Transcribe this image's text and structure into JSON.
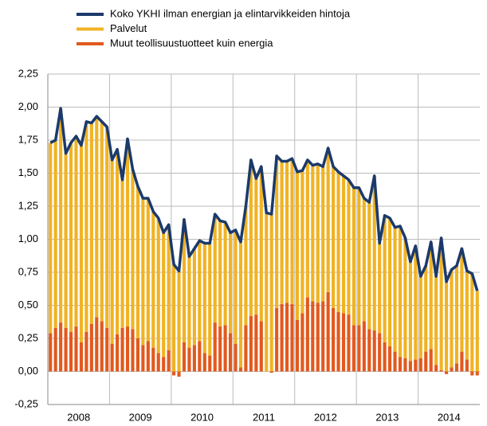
{
  "chart_data": {
    "type": "bar",
    "stacked": true,
    "categories": [
      null,
      null,
      null,
      null,
      null,
      null,
      "2008",
      null,
      null,
      null,
      null,
      null,
      null,
      null,
      null,
      null,
      null,
      null,
      "2009",
      null,
      null,
      null,
      null,
      null,
      null,
      null,
      null,
      null,
      null,
      null,
      "2010",
      null,
      null,
      null,
      null,
      null,
      null,
      null,
      null,
      null,
      null,
      null,
      "2011",
      null,
      null,
      null,
      null,
      null,
      null,
      null,
      null,
      null,
      null,
      null,
      "2012",
      null,
      null,
      null,
      null,
      null,
      null,
      null,
      null,
      null,
      null,
      null,
      "2013",
      null,
      null,
      null,
      null,
      null,
      null,
      null,
      null,
      null,
      null,
      null,
      "2014",
      null,
      null,
      null,
      null,
      null
    ],
    "series": [
      {
        "name": "Koko YKHI ilman energian ja elintarvikkeiden hintoja",
        "type": "line",
        "color": "#1b3a6b",
        "values": [
          1.73,
          1.75,
          1.99,
          1.65,
          1.73,
          1.78,
          1.71,
          1.89,
          1.88,
          1.93,
          1.89,
          1.85,
          1.6,
          1.68,
          1.45,
          1.76,
          1.53,
          1.4,
          1.31,
          1.31,
          1.21,
          1.16,
          1.05,
          1.11,
          0.81,
          0.76,
          1.15,
          0.87,
          0.93,
          0.99,
          0.97,
          0.97,
          1.19,
          1.14,
          1.13,
          1.05,
          1.07,
          0.98,
          1.25,
          1.6,
          1.46,
          1.55,
          1.2,
          1.19,
          1.63,
          1.59,
          1.59,
          1.61,
          1.51,
          1.52,
          1.6,
          1.56,
          1.57,
          1.55,
          1.69,
          1.55,
          1.51,
          1.48,
          1.45,
          1.39,
          1.39,
          1.31,
          1.28,
          1.48,
          0.97,
          1.18,
          1.16,
          1.09,
          1.1,
          1.01,
          0.83,
          0.95,
          0.72,
          0.8,
          0.98,
          0.72,
          1.01,
          0.68,
          0.77,
          0.8,
          0.93,
          0.76,
          0.74,
          0.61
        ]
      },
      {
        "name": "Palvelut",
        "type": "bar",
        "color": "#f0b323",
        "values": [
          1.44,
          1.42,
          1.62,
          1.32,
          1.43,
          1.44,
          1.49,
          1.59,
          1.52,
          1.52,
          1.51,
          1.52,
          1.39,
          1.4,
          1.12,
          1.42,
          1.21,
          1.15,
          1.11,
          1.08,
          1.03,
          1.02,
          0.94,
          0.95,
          0.81,
          0.76,
          0.93,
          0.69,
          0.73,
          0.76,
          0.83,
          0.85,
          0.82,
          0.8,
          0.78,
          0.76,
          0.86,
          0.95,
          0.9,
          1.18,
          1.03,
          1.17,
          1.2,
          1.19,
          1.15,
          1.08,
          1.07,
          1.1,
          1.12,
          1.08,
          1.04,
          1.03,
          1.05,
          1.02,
          1.09,
          1.07,
          1.06,
          1.04,
          1.02,
          1.04,
          1.04,
          0.93,
          0.96,
          1.17,
          0.68,
          0.96,
          0.97,
          0.94,
          0.99,
          0.91,
          0.75,
          0.86,
          0.62,
          0.65,
          0.81,
          0.67,
          1.0,
          0.68,
          0.74,
          0.74,
          0.78,
          0.67,
          0.74,
          0.61
        ]
      },
      {
        "name": "Muut teollisuustuotteet kuin energia",
        "type": "bar",
        "color": "#e2591e",
        "values": [
          0.29,
          0.33,
          0.37,
          0.33,
          0.3,
          0.34,
          0.22,
          0.3,
          0.36,
          0.41,
          0.38,
          0.33,
          0.21,
          0.28,
          0.33,
          0.34,
          0.32,
          0.25,
          0.2,
          0.23,
          0.18,
          0.14,
          0.11,
          0.16,
          -0.03,
          -0.04,
          0.22,
          0.18,
          0.2,
          0.23,
          0.14,
          0.12,
          0.37,
          0.34,
          0.35,
          0.29,
          0.21,
          0.03,
          0.35,
          0.42,
          0.43,
          0.38,
          0.0,
          -0.01,
          0.48,
          0.51,
          0.52,
          0.51,
          0.39,
          0.44,
          0.56,
          0.53,
          0.52,
          0.53,
          0.6,
          0.48,
          0.45,
          0.44,
          0.43,
          0.35,
          0.35,
          0.38,
          0.32,
          0.31,
          0.29,
          0.22,
          0.19,
          0.15,
          0.11,
          0.1,
          0.08,
          0.09,
          0.1,
          0.15,
          0.17,
          0.05,
          0.01,
          -0.02,
          0.03,
          0.06,
          0.15,
          0.09,
          -0.03,
          -0.03
        ]
      }
    ],
    "ylim": [
      -0.25,
      2.25
    ],
    "yticks": [
      {
        "value": -0.25,
        "label": "-0,25"
      },
      {
        "value": 0,
        "label": "0,00"
      },
      {
        "value": 0.25,
        "label": "0,25"
      },
      {
        "value": 0.5,
        "label": "0,50"
      },
      {
        "value": 0.75,
        "label": "0,75"
      },
      {
        "value": 1,
        "label": "1,00"
      },
      {
        "value": 1.25,
        "label": "1,25"
      },
      {
        "value": 1.5,
        "label": "1,50"
      },
      {
        "value": 1.75,
        "label": "1,75"
      },
      {
        "value": 2,
        "label": "2,00"
      },
      {
        "value": 2.25,
        "label": "2,25"
      }
    ],
    "grid": true,
    "legend": "top"
  }
}
